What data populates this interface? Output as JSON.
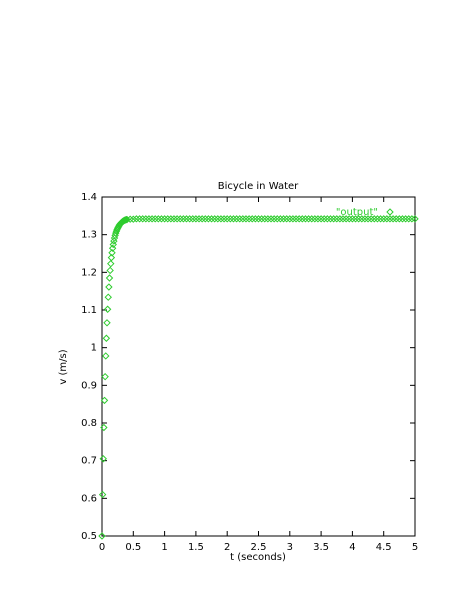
{
  "chart_data": {
    "type": "scatter",
    "title": "Bicycle in Water",
    "x_label": "t (seconds)",
    "y_label": "v (m/s)",
    "series": [
      {
        "name": "\"output\"",
        "color": "#2ecc2e",
        "x": [
          0,
          0.01,
          0.02,
          0.03,
          0.04,
          0.05,
          0.06,
          0.07,
          0.08,
          0.09,
          0.1,
          0.11,
          0.12,
          0.13,
          0.14,
          0.15,
          0.16,
          0.17,
          0.18,
          0.19,
          0.2,
          0.21,
          0.22,
          0.23,
          0.24,
          0.25,
          0.26,
          0.27,
          0.28,
          0.29,
          0.3,
          0.31,
          0.32,
          0.33,
          0.34,
          0.35,
          0.36,
          0.37,
          0.38,
          0.39,
          0.4,
          0.45,
          0.5,
          0.55,
          0.6,
          0.65,
          0.7,
          0.75,
          0.8,
          0.85,
          0.9,
          0.95,
          1,
          1.05,
          1.1,
          1.15,
          1.2,
          1.25,
          1.3,
          1.35,
          1.4,
          1.45,
          1.5,
          1.55,
          1.6,
          1.65,
          1.7,
          1.75,
          1.8,
          1.85,
          1.9,
          1.95,
          2,
          2.05,
          2.1,
          2.15,
          2.2,
          2.25,
          2.3,
          2.35,
          2.4,
          2.45,
          2.5,
          2.55,
          2.6,
          2.65,
          2.7,
          2.75,
          2.8,
          2.85,
          2.9,
          2.95,
          3,
          3.05,
          3.1,
          3.15,
          3.2,
          3.25,
          3.3,
          3.35,
          3.4,
          3.45,
          3.5,
          3.55,
          3.6,
          3.65,
          3.7,
          3.75,
          3.8,
          3.85,
          3.9,
          3.95,
          4,
          4.05,
          4.1,
          4.15,
          4.2,
          4.25,
          4.3,
          4.35,
          4.4,
          4.45,
          4.5,
          4.55,
          4.6,
          4.65,
          4.7,
          4.75,
          4.8,
          4.85,
          4.9,
          4.95,
          5
        ],
        "values": [
          0.5,
          0.61,
          0.705,
          0.788,
          0.86,
          0.923,
          0.978,
          1.025,
          1.066,
          1.102,
          1.134,
          1.161,
          1.185,
          1.205,
          1.223,
          1.239,
          1.252,
          1.264,
          1.274,
          1.283,
          1.291,
          1.298,
          1.304,
          1.309,
          1.313,
          1.317,
          1.32,
          1.323,
          1.326,
          1.328,
          1.33,
          1.332,
          1.333,
          1.335,
          1.336,
          1.337,
          1.338,
          1.339,
          1.339,
          1.34,
          1.34,
          1.341,
          1.341,
          1.342,
          1.342,
          1.342,
          1.342,
          1.342,
          1.342,
          1.342,
          1.342,
          1.342,
          1.342,
          1.342,
          1.342,
          1.342,
          1.342,
          1.342,
          1.342,
          1.342,
          1.342,
          1.342,
          1.342,
          1.342,
          1.342,
          1.342,
          1.342,
          1.342,
          1.342,
          1.342,
          1.342,
          1.342,
          1.342,
          1.342,
          1.342,
          1.342,
          1.342,
          1.342,
          1.342,
          1.342,
          1.342,
          1.342,
          1.342,
          1.342,
          1.342,
          1.342,
          1.342,
          1.342,
          1.342,
          1.342,
          1.342,
          1.342,
          1.342,
          1.342,
          1.342,
          1.342,
          1.342,
          1.342,
          1.342,
          1.342,
          1.342,
          1.342,
          1.342,
          1.342,
          1.342,
          1.342,
          1.342,
          1.342,
          1.342,
          1.342,
          1.342,
          1.342,
          1.342,
          1.342,
          1.342,
          1.342,
          1.342,
          1.342,
          1.342,
          1.342,
          1.342,
          1.342,
          1.342,
          1.342,
          1.342,
          1.342,
          1.342,
          1.342,
          1.342,
          1.342,
          1.342,
          1.342,
          1.342
        ]
      }
    ],
    "xlim": [
      0,
      5
    ],
    "xticks": [
      0,
      0.5,
      1,
      1.5,
      2,
      2.5,
      3,
      3.5,
      4,
      4.5,
      5
    ],
    "ylim": [
      0.5,
      1.4
    ],
    "yticks": [
      0.5,
      0.6,
      0.7,
      0.8,
      0.9,
      1,
      1.1,
      1.2,
      1.3,
      1.4
    ],
    "grid": false,
    "legend_position": "top-right"
  }
}
